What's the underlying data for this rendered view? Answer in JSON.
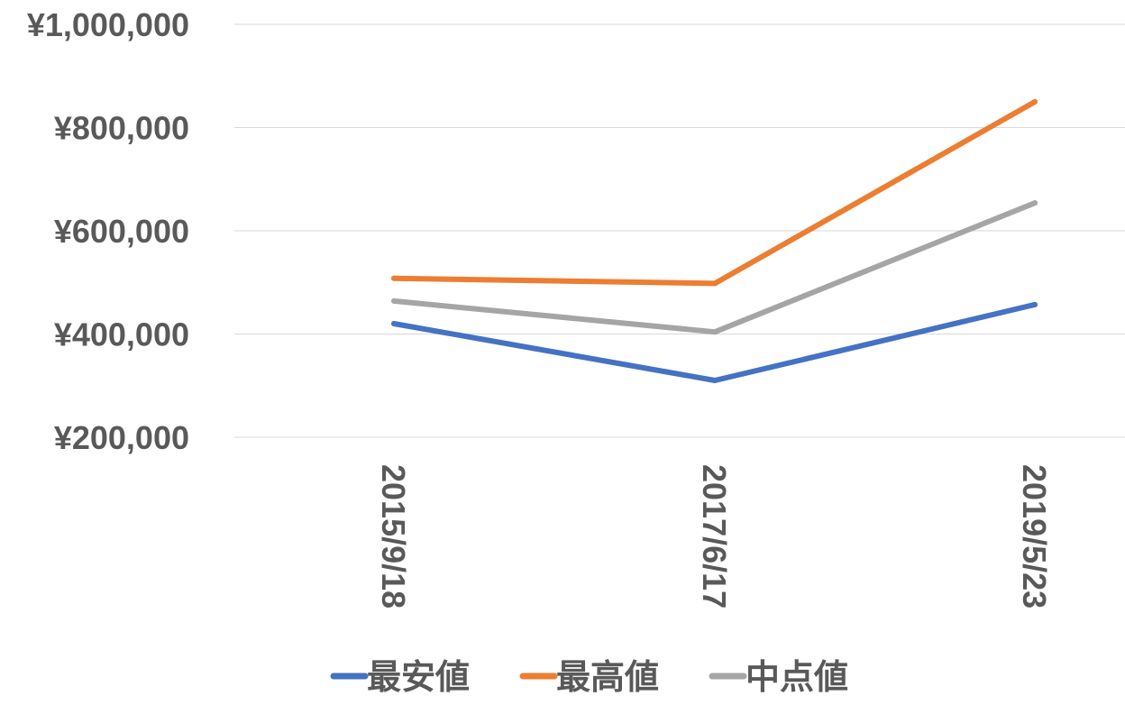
{
  "chart_data": {
    "type": "line",
    "categories": [
      "2015/9/18",
      "2017/6/17",
      "2019/5/23"
    ],
    "series": [
      {
        "name": "最安値",
        "values": [
          420000,
          310000,
          457000
        ],
        "color": "#4472c4"
      },
      {
        "name": "最高値",
        "values": [
          508000,
          498000,
          850000
        ],
        "color": "#ed7d31"
      },
      {
        "name": "中点値",
        "values": [
          464000,
          404000,
          654000
        ],
        "color": "#a5a5a5"
      }
    ],
    "y_ticks": [
      "¥200,000",
      "¥400,000",
      "¥600,000",
      "¥800,000",
      "¥1,000,000"
    ],
    "ylim": [
      200000,
      1000000
    ],
    "grid": true,
    "legend_position": "bottom",
    "title": "",
    "xlabel": "",
    "ylabel": ""
  }
}
